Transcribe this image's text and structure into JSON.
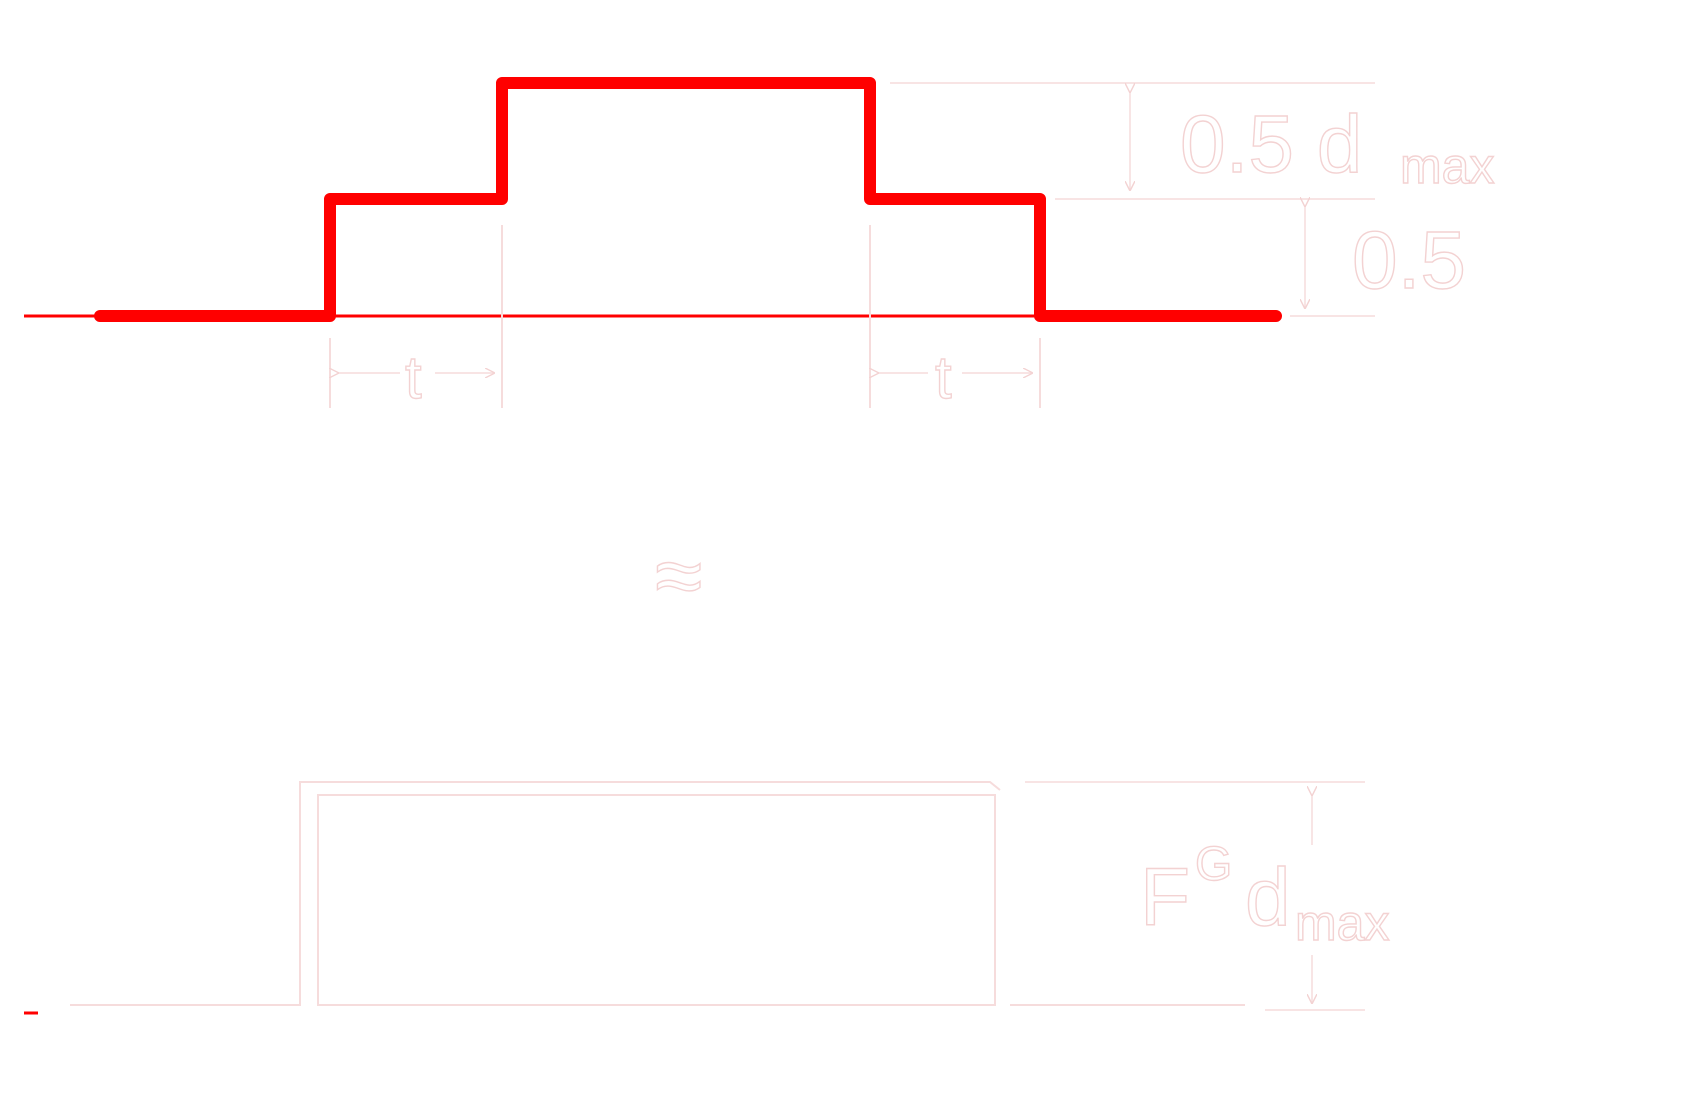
{
  "colors": {
    "pulse": "#ff0000",
    "annotation": "#f3d2d2",
    "background": "#ffffff"
  },
  "top_pulse": {
    "upper_step_label": "0.5 d",
    "upper_step_subscript": "max",
    "lower_step_label": "0.5",
    "left_duration_label": "t",
    "right_duration_label": "t"
  },
  "approx_symbol": "≈",
  "bottom_pulse": {
    "height_label_main": "F",
    "height_label_superscript": "G",
    "height_label_d": "d",
    "height_label_subscript": "max"
  }
}
